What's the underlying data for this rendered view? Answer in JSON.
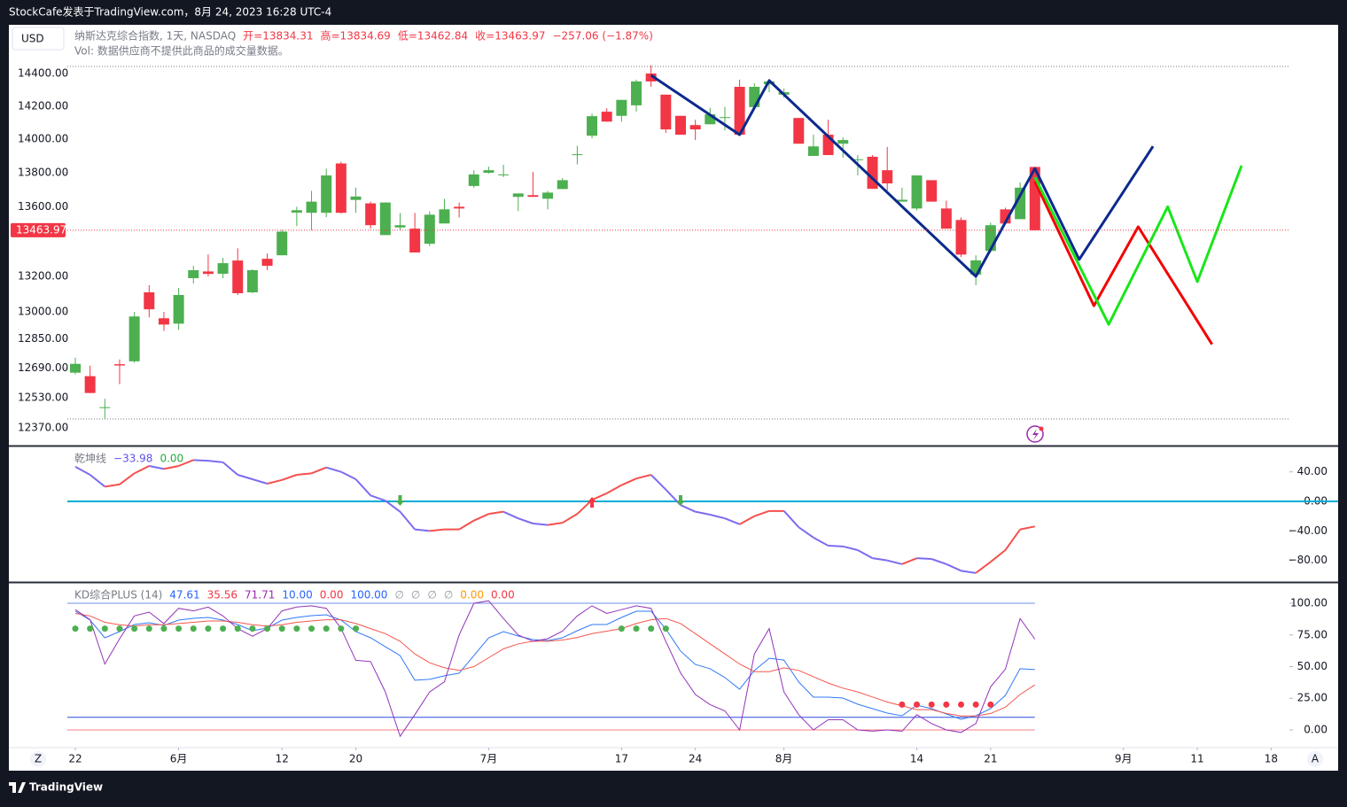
{
  "header": "StockCafe发表于TradingView.com，8月 24, 2023 16:28 UTC-4",
  "footer": "TradingView",
  "buttons": [
    "Z",
    "A"
  ],
  "chart_data": [
    {
      "type": "candlestick",
      "title": "纳斯达克综合指数, 1天, NASDAQ",
      "currency": "USD",
      "legend": [
        "开=13834.31",
        "高=13834.69",
        "低=13462.84",
        "收=13463.97",
        "−257.06 (−1.87%)"
      ],
      "legend_color": "#f23645",
      "volume_note": "Vol: 数据供应商不提供此商品的成交量数据。",
      "log_scale": true,
      "grid": false,
      "up_color": "#4caf50",
      "down_color": "#f23645",
      "open": [
        12666,
        12647,
        12475,
        12712,
        12728,
        13110,
        12965,
        12935,
        13190,
        13228,
        13215,
        13290,
        13110,
        13300,
        13320,
        13566,
        13565,
        13565,
        13855,
        13640,
        13620,
        13436,
        13480,
        13473,
        13386,
        13503,
        13600,
        13722,
        13800,
        13785,
        13658,
        13668,
        13647,
        13704,
        13905,
        14021,
        14166,
        14141,
        14205,
        14400,
        14270,
        14141,
        14085,
        14090,
        14128,
        14318,
        14194,
        14334,
        14270,
        14128,
        13900,
        14027,
        13973,
        13875,
        13895,
        13815,
        13630,
        13590,
        13756,
        13590,
        13523,
        13210,
        13345,
        13585,
        13528,
        13834.31
      ],
      "high": [
        12748,
        12704,
        12525,
        12738,
        13000,
        13150,
        13000,
        13135,
        13260,
        13325,
        13305,
        13360,
        13240,
        13330,
        13466,
        13600,
        13693,
        13825,
        13865,
        13712,
        13630,
        13625,
        13564,
        13564,
        13574,
        13646,
        13625,
        13815,
        13836,
        13847,
        13678,
        13805,
        13693,
        13768,
        13960,
        14155,
        14187,
        14238,
        14362,
        14450,
        14270,
        14141,
        14117,
        14190,
        14195,
        14362,
        14340,
        14367,
        14307,
        14128,
        14027,
        14117,
        14011,
        13905,
        13905,
        13954,
        13712,
        13784,
        13756,
        13636,
        13538,
        13320,
        13508,
        13595,
        13743,
        13834.69
      ],
      "low": [
        12657,
        12556,
        12420,
        12604,
        12720,
        12970,
        12895,
        12900,
        13160,
        13200,
        13190,
        13095,
        13105,
        13235,
        13320,
        13488,
        13463,
        13540,
        13560,
        13565,
        13473,
        13436,
        13463,
        13336,
        13372,
        13503,
        13538,
        13712,
        13795,
        13774,
        13575,
        13658,
        13585,
        13704,
        13850,
        14005,
        14106,
        14106,
        14167,
        14318,
        14037,
        14027,
        13995,
        14090,
        14053,
        14027,
        14183,
        14285,
        14252,
        13973,
        13900,
        13905,
        13890,
        13784,
        13705,
        13696,
        13630,
        13580,
        13630,
        13473,
        13310,
        13150,
        13335,
        13503,
        13528,
        13462.84
      ],
      "close": [
        12714,
        12556,
        12480,
        12705,
        12975,
        13015,
        12930,
        13095,
        13235,
        13214,
        13275,
        13105,
        13235,
        13260,
        13456,
        13580,
        13630,
        13784,
        13565,
        13660,
        13493,
        13625,
        13493,
        13336,
        13554,
        13585,
        13590,
        13790,
        13815,
        13790,
        13678,
        13658,
        13683,
        13756,
        13910,
        14139,
        14106,
        14238,
        14351,
        14351,
        14059,
        14027,
        14059,
        14150,
        14133,
        14027,
        14318,
        14351,
        14285,
        13973,
        13957,
        13905,
        13995,
        13880,
        13705,
        13737,
        13641,
        13784,
        13630,
        13473,
        13324,
        13291,
        13493,
        13503,
        13712,
        13463.97
      ],
      "last": 13463.97,
      "ylim": [
        12276,
        14704
      ],
      "yticks": [
        {
          "value": 12370,
          "label": "12370.00"
        },
        {
          "value": 12530,
          "label": "12530.00"
        },
        {
          "value": 12690,
          "label": "12690.00"
        },
        {
          "value": 12850,
          "label": "12850.00"
        },
        {
          "value": 13000,
          "label": "13000.00"
        },
        {
          "value": 13200,
          "label": "13200.00"
        },
        {
          "value": 13600,
          "label": "13600.00"
        },
        {
          "value": 13800,
          "label": "13800.00"
        },
        {
          "value": 14000,
          "label": "14000.00"
        },
        {
          "value": 14200,
          "label": "14200.00"
        },
        {
          "value": 14400,
          "label": "14400.00"
        }
      ],
      "xlim": [
        -0.54,
        82.24
      ],
      "xticks": [
        {
          "value": 0,
          "label": "22"
        },
        {
          "value": 7,
          "label": "6月"
        },
        {
          "value": 14,
          "label": "12"
        },
        {
          "value": 19,
          "label": "20"
        },
        {
          "value": 28,
          "label": "7月"
        },
        {
          "value": 37,
          "label": "17"
        },
        {
          "value": 42,
          "label": "24"
        },
        {
          "value": 48,
          "label": "8月"
        },
        {
          "value": 57,
          "label": "14"
        },
        {
          "value": 62,
          "label": "21"
        },
        {
          "value": 71,
          "label": "9月"
        },
        {
          "value": 76,
          "label": "11"
        },
        {
          "value": 81,
          "label": "18"
        }
      ],
      "drawings": [
        {
          "color": "#0c2a8c",
          "x": [
            39,
            45,
            47,
            61,
            65,
            68,
            73
          ],
          "y": [
            14389,
            14027,
            14356,
            13200,
            13825,
            13296,
            13957
          ]
        },
        {
          "color": "#f50000",
          "x": [
            65,
            69,
            72,
            77
          ],
          "y": [
            13748,
            13035,
            13484,
            12821
          ]
        },
        {
          "color": "#19e619",
          "x": [
            65,
            70,
            74,
            76,
            79
          ],
          "y": [
            13774,
            12931,
            13600,
            13170,
            13842
          ]
        }
      ]
    },
    {
      "type": "line",
      "title": "乾坤线",
      "legend": [
        {
          "text": "乾坤线",
          "color": "#787b86"
        },
        {
          "text": "−33.98",
          "color": "#5b50f0"
        },
        {
          "text": "0.00",
          "color": "#22ab3c"
        }
      ],
      "values": [
        47,
        36,
        20,
        23,
        38,
        48,
        44,
        48,
        56,
        55,
        53,
        36,
        30,
        24,
        29,
        36,
        38,
        46,
        40,
        30,
        8,
        1,
        -14,
        -38,
        -40,
        -38,
        -38,
        -26,
        -17,
        -14,
        -23,
        -30,
        -32,
        -29,
        -17,
        2,
        11,
        22,
        31,
        36,
        16,
        -5,
        -14,
        -18,
        -23,
        -31,
        -20,
        -13,
        -13,
        -35,
        -49,
        -60,
        -61,
        -66,
        -77,
        -80,
        -85,
        -77,
        -78,
        -85,
        -94,
        -97,
        -82,
        -66,
        -38,
        -33.98
      ],
      "up_color": "#f5504e",
      "down_color": "#7b6cf0",
      "levels": [
        {
          "value": 0,
          "color": "#00acd7"
        }
      ],
      "buy_signals": [
        35
      ],
      "sell_signals": [
        22,
        41
      ],
      "signal_colors": {
        "buy": "#f23645",
        "sell": "#4caf50"
      },
      "ylim": [
        -109.2,
        75.6
      ],
      "yticks": [
        {
          "value": -80,
          "label": "−80.00"
        },
        {
          "value": -40,
          "label": "−40.00"
        },
        {
          "value": 0,
          "label": "0.00"
        },
        {
          "value": 40,
          "label": "40.00"
        }
      ]
    },
    {
      "type": "line",
      "title": "KD综合PLUS (14)",
      "legend": [
        {
          "text": "KD综合PLUS (14)",
          "color": "#787b86"
        },
        {
          "text": "47.61",
          "color": "#2962ff"
        },
        {
          "text": "35.56",
          "color": "#f23645"
        },
        {
          "text": "71.71",
          "color": "#9c27b0"
        },
        {
          "text": "10.00",
          "color": "#2962ff"
        },
        {
          "text": "0.00",
          "color": "#f23645"
        },
        {
          "text": "100.00",
          "color": "#2962ff"
        },
        {
          "text": "∅",
          "color": "#9598a1"
        },
        {
          "text": "∅",
          "color": "#9598a1"
        },
        {
          "text": "∅",
          "color": "#9598a1"
        },
        {
          "text": "∅",
          "color": "#9598a1"
        },
        {
          "text": "0.00",
          "color": "#ff9800"
        },
        {
          "text": "0.00",
          "color": "#f23645"
        }
      ],
      "series": [
        {
          "color": "#3179f5",
          "values": [
            93.7,
            86.7,
            72.7,
            77.6,
            83.2,
            84.6,
            82.5,
            86.7,
            88.1,
            88.8,
            86.7,
            83.2,
            78.3,
            80.4,
            86.7,
            88.8,
            90.2,
            90.9,
            86.7,
            77.6,
            72.7,
            65.7,
            58.7,
            39.2,
            39.9,
            42.7,
            44.8,
            58.7,
            72.7,
            77.6,
            74.1,
            71.3,
            70.6,
            72.7,
            78.3,
            83.2,
            83.2,
            88.8,
            93.7,
            93.7,
            79.7,
            62.2,
            51.7,
            48.3,
            41.3,
            32.2,
            46.9,
            56.6,
            55.2,
            37.8,
            25.9,
            25.9,
            25.2,
            20.3,
            16.8,
            13.3,
            11.2,
            19.6,
            16.8,
            12.6,
            8.4,
            11.2,
            16.8,
            27.3,
            48.3,
            47.61
          ]
        },
        {
          "color": "#f5564c",
          "values": [
            92,
            90,
            85,
            83,
            82,
            83,
            83,
            84,
            85,
            86,
            86,
            85,
            83,
            82,
            83,
            85,
            86,
            87,
            87,
            84,
            80,
            76,
            70,
            60,
            53,
            49,
            47,
            50,
            57,
            64,
            68,
            70,
            70,
            71,
            73,
            76,
            78,
            80,
            84,
            87,
            88,
            84,
            76,
            68,
            60,
            52,
            46,
            46,
            49,
            47,
            42,
            37,
            33,
            30,
            26,
            22,
            19,
            16,
            16,
            13,
            11,
            11,
            13,
            18,
            28,
            35.56
          ]
        },
        {
          "color": "#9333b8",
          "values": [
            95,
            87,
            52,
            72,
            90,
            93,
            84,
            96,
            94,
            97,
            90,
            80,
            74,
            80,
            94,
            97,
            98,
            96,
            80,
            55,
            54,
            30,
            -5,
            12,
            30,
            38,
            75,
            100,
            102,
            88,
            75,
            70,
            72,
            78,
            90,
            98,
            92,
            95,
            98,
            96,
            70,
            45,
            28,
            20,
            15,
            0,
            60,
            80,
            30,
            12,
            0,
            8,
            8,
            0,
            -1,
            0,
            -1,
            12,
            5,
            0,
            -2,
            5,
            34,
            48,
            88,
            71.71
          ]
        }
      ],
      "levels": [
        {
          "value": 100,
          "color": "#6f8fe8"
        },
        {
          "value": 10,
          "color": "#2a4de0"
        },
        {
          "value": 0,
          "color": "#f77c80"
        }
      ],
      "markers": [
        {
          "value": 80,
          "color": "#4caf50",
          "x": [
            0,
            1,
            2,
            3,
            4,
            5,
            6,
            7,
            8,
            9,
            10,
            11,
            12,
            13,
            14,
            15,
            16,
            17,
            18,
            19,
            37,
            38,
            39,
            40
          ]
        },
        {
          "value": 20,
          "color": "#f23645",
          "x": [
            56,
            57,
            58,
            59,
            60,
            61,
            62
          ]
        }
      ],
      "ylim": [
        -13.3,
        116.8
      ],
      "yticks": [
        {
          "value": 0,
          "label": "0.00"
        },
        {
          "value": 25,
          "label": "25.00"
        },
        {
          "value": 50,
          "label": "50.00"
        },
        {
          "value": 75,
          "label": "75.00"
        },
        {
          "value": 100,
          "label": "100.00"
        }
      ]
    }
  ]
}
